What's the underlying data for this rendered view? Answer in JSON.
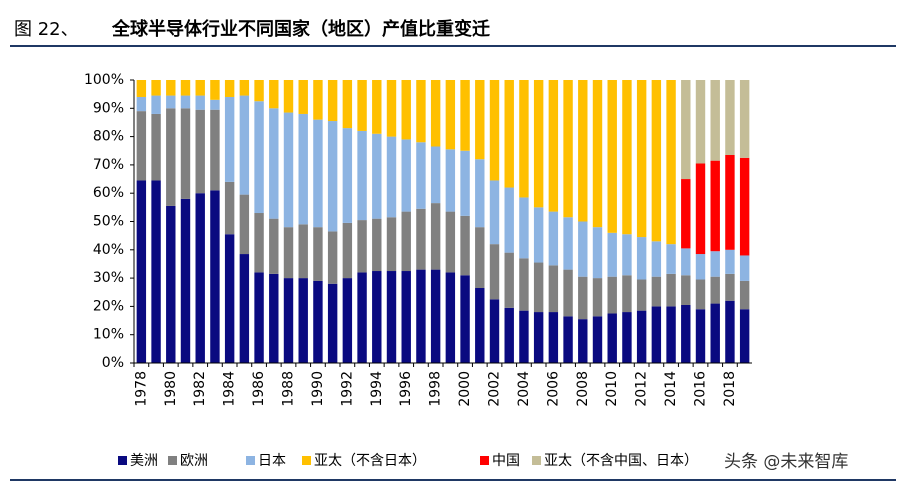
{
  "chart_data": {
    "type": "stacked_bar",
    "figure_label": "图 22、",
    "title": "全球半导体行业不同国家（地区）产值比重变迁",
    "watermark": "头条 @未来智库",
    "categories": [
      "1978",
      null,
      "1980",
      null,
      "1982",
      null,
      "1984",
      null,
      "1986",
      null,
      "1988",
      null,
      "1990",
      null,
      "1992",
      null,
      "1994",
      null,
      "1996",
      null,
      "1998",
      null,
      "2000",
      null,
      "2002",
      null,
      "2004",
      null,
      "2006",
      null,
      "2008",
      null,
      "2010",
      null,
      "2012",
      null,
      "2014",
      null,
      "2016",
      null,
      "2018",
      null
    ],
    "ylim": [
      0,
      100
    ],
    "yticks": [
      {
        "value": 0,
        "label": "0%"
      },
      {
        "value": 10,
        "label": "10%"
      },
      {
        "value": 20,
        "label": "20%"
      },
      {
        "value": 30,
        "label": "30%"
      },
      {
        "value": 40,
        "label": "40%"
      },
      {
        "value": 50,
        "label": "50%"
      },
      {
        "value": 60,
        "label": "60%"
      },
      {
        "value": 70,
        "label": "70%"
      },
      {
        "value": 80,
        "label": "80%"
      },
      {
        "value": 90,
        "label": "90%"
      },
      {
        "value": 100,
        "label": "100%"
      }
    ],
    "series": [
      {
        "name": "美洲",
        "color": "#0a0a80",
        "values": [
          64.5,
          64.5,
          55.5,
          58,
          60,
          61,
          45.5,
          38.5,
          32,
          31.5,
          30,
          30,
          29,
          28,
          30,
          32,
          32.5,
          32.5,
          32.5,
          33,
          33,
          32,
          31,
          26.5,
          22.5,
          19.5,
          18.5,
          18,
          18,
          16.5,
          15.5,
          16.5,
          17.5,
          18,
          18.5,
          20,
          20,
          20.5,
          19,
          21,
          22,
          19
        ]
      },
      {
        "name": "欧洲",
        "color": "#808080",
        "values": [
          24.5,
          23.5,
          34.5,
          32,
          29.5,
          28.5,
          18.5,
          21,
          21,
          19.5,
          18,
          19,
          19,
          18.5,
          19.5,
          18.5,
          18.5,
          19,
          21,
          21.5,
          23.5,
          21.5,
          21,
          21.5,
          19.5,
          19.5,
          18.5,
          17.5,
          16.5,
          16.5,
          15,
          13.5,
          13,
          13,
          11,
          10.5,
          11.5,
          10.5,
          10.5,
          9.5,
          9.5,
          10
        ]
      },
      {
        "name": "日本",
        "color": "#8db4e2",
        "values": [
          5,
          6.5,
          4.5,
          4.5,
          5,
          3.5,
          30,
          35,
          39.5,
          39,
          40.5,
          39,
          38,
          39,
          33.5,
          31.5,
          30,
          28.5,
          25.5,
          23.5,
          20,
          22,
          23,
          24,
          22.5,
          23,
          21.5,
          19.5,
          19,
          18.5,
          19.5,
          18,
          15.5,
          14.5,
          15,
          12.5,
          10.5,
          9.5,
          9,
          9,
          8.5,
          9
        ]
      },
      {
        "name": "亚太（不含日本）",
        "color": "#ffc000",
        "values": [
          6,
          5.5,
          5.5,
          5.5,
          5.5,
          7,
          6,
          5.5,
          7.5,
          10,
          11.5,
          12,
          14,
          14.5,
          17,
          18,
          19,
          20,
          21,
          22,
          23.5,
          24.5,
          25,
          28,
          35.5,
          38,
          41.5,
          45,
          46.5,
          48.5,
          50,
          52,
          54,
          54.5,
          55.5,
          57,
          58,
          null,
          null,
          null,
          null,
          null
        ]
      },
      {
        "name": "中国",
        "color": "#ff0000",
        "values": [
          null,
          null,
          null,
          null,
          null,
          null,
          null,
          null,
          null,
          null,
          null,
          null,
          null,
          null,
          null,
          null,
          null,
          null,
          null,
          null,
          null,
          null,
          null,
          null,
          null,
          null,
          null,
          null,
          null,
          null,
          null,
          null,
          null,
          null,
          null,
          null,
          null,
          24.5,
          32,
          32,
          33.5,
          34.5
        ]
      },
      {
        "name": "亚太（不含中国、日本）",
        "color": "#c4bd97",
        "values": [
          null,
          null,
          null,
          null,
          null,
          null,
          null,
          null,
          null,
          null,
          null,
          null,
          null,
          null,
          null,
          null,
          null,
          null,
          null,
          null,
          null,
          null,
          null,
          null,
          null,
          null,
          null,
          null,
          null,
          null,
          null,
          null,
          null,
          null,
          null,
          null,
          null,
          35,
          29.5,
          28.5,
          26.5,
          27.5
        ]
      }
    ]
  }
}
